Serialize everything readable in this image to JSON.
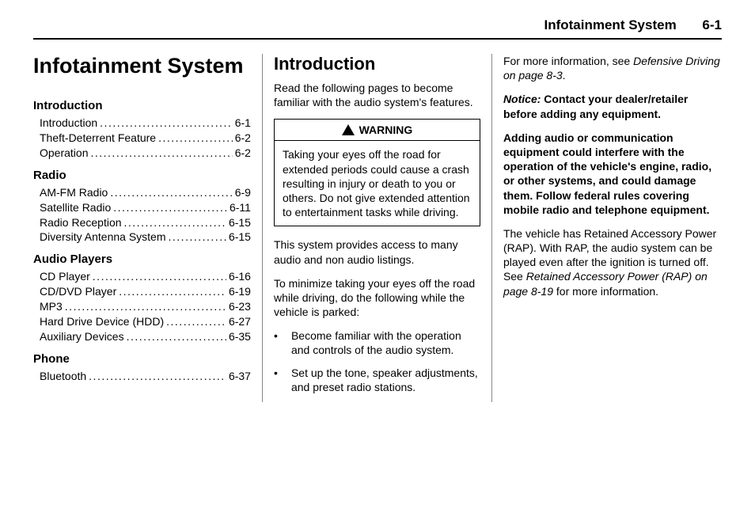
{
  "header": {
    "title": "Infotainment System",
    "page": "6-1"
  },
  "col1": {
    "title": "Infotainment System",
    "sections": [
      {
        "title": "Introduction",
        "entries": [
          {
            "label": "Introduction",
            "page": "6-1"
          },
          {
            "label": "Theft-Deterrent Feature",
            "page": "6-2"
          },
          {
            "label": "Operation",
            "page": "6-2"
          }
        ]
      },
      {
        "title": "Radio",
        "entries": [
          {
            "label": "AM-FM Radio",
            "page": "6-9"
          },
          {
            "label": "Satellite Radio",
            "page": "6-11"
          },
          {
            "label": "Radio Reception",
            "page": "6-15"
          },
          {
            "label": "Diversity Antenna System",
            "page": "6-15"
          }
        ]
      },
      {
        "title": "Audio Players",
        "entries": [
          {
            "label": "CD Player",
            "page": "6-16"
          },
          {
            "label": "CD/DVD Player",
            "page": "6-19"
          },
          {
            "label": "MP3",
            "page": "6-23"
          },
          {
            "label": "Hard Drive Device (HDD)",
            "page": "6-27"
          },
          {
            "label": "Auxiliary Devices",
            "page": "6-35"
          }
        ]
      },
      {
        "title": "Phone",
        "entries": [
          {
            "label": "Bluetooth",
            "page": "6-37"
          }
        ]
      }
    ]
  },
  "col2": {
    "heading": "Introduction",
    "intro": "Read the following pages to become familiar with the audio system's features.",
    "warning_label": "WARNING",
    "warning_body": "Taking your eyes off the road for extended periods could cause a crash resulting in injury or death to you or others. Do not give extended attention to entertainment tasks while driving.",
    "para1": "This system provides access to many audio and non audio listings.",
    "para2": "To minimize taking your eyes off the road while driving, do the following while the vehicle is parked:",
    "bullets": [
      "Become familiar with the operation and controls of the audio system.",
      "Set up the tone, speaker adjustments, and preset radio stations."
    ]
  },
  "col3": {
    "p1a": "For more information, see ",
    "p1b": "Defensive Driving on page 8-3",
    "p1c": ".",
    "notice_label": "Notice:",
    "notice_body": "Contact your dealer/retailer before adding any equipment.",
    "bold_para": "Adding audio or communication equipment could interfere with the operation of the vehicle's engine, radio, or other systems, and could damage them. Follow federal rules covering mobile radio and telephone equipment.",
    "p3a": "The vehicle has Retained Accessory Power (RAP). With RAP, the audio system can be played even after the ignition is turned off. See ",
    "p3b": "Retained Accessory Power (RAP) on page 8-19",
    "p3c": " for more information."
  }
}
